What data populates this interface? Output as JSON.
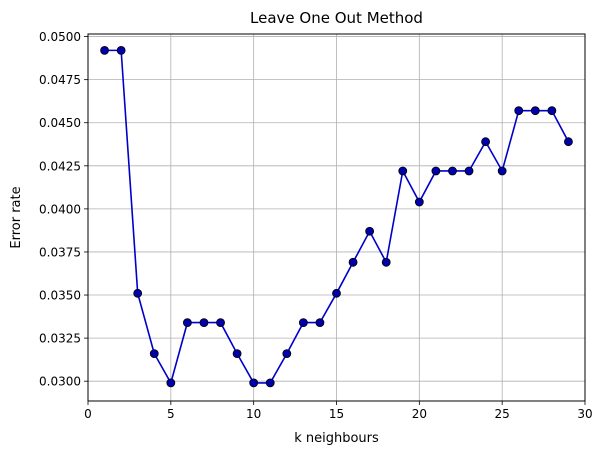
{
  "chart_data": {
    "type": "line",
    "title": "Leave One Out Method",
    "xlabel": "k neighbours",
    "ylabel": "Error rate",
    "xlim": [
      0,
      30
    ],
    "ylim": [
      0.02885,
      0.05015
    ],
    "xticks": [
      0,
      5,
      10,
      15,
      20,
      25,
      30
    ],
    "yticks": [
      0.03,
      0.0325,
      0.035,
      0.0375,
      0.04,
      0.0425,
      0.045,
      0.0475,
      0.05
    ],
    "ytick_labels": [
      "0.0300",
      "0.0325",
      "0.0350",
      "0.0375",
      "0.0400",
      "0.0425",
      "0.0450",
      "0.0475",
      "0.0500"
    ],
    "grid": true,
    "series": [
      {
        "line_color": "#0000cc",
        "marker_color": "#0000aa",
        "x": [
          1,
          2,
          3,
          4,
          5,
          6,
          7,
          8,
          9,
          10,
          11,
          12,
          13,
          14,
          15,
          16,
          17,
          18,
          19,
          20,
          21,
          22,
          23,
          24,
          25,
          26,
          27,
          28,
          29
        ],
        "y": [
          0.0492,
          0.0492,
          0.0351,
          0.0316,
          0.0299,
          0.0334,
          0.0334,
          0.0334,
          0.0316,
          0.0299,
          0.0299,
          0.0316,
          0.0334,
          0.0334,
          0.0351,
          0.0369,
          0.0387,
          0.0369,
          0.0422,
          0.0404,
          0.0422,
          0.0422,
          0.0422,
          0.0439,
          0.0422,
          0.0457,
          0.0457,
          0.0457,
          0.0439
        ]
      }
    ]
  }
}
